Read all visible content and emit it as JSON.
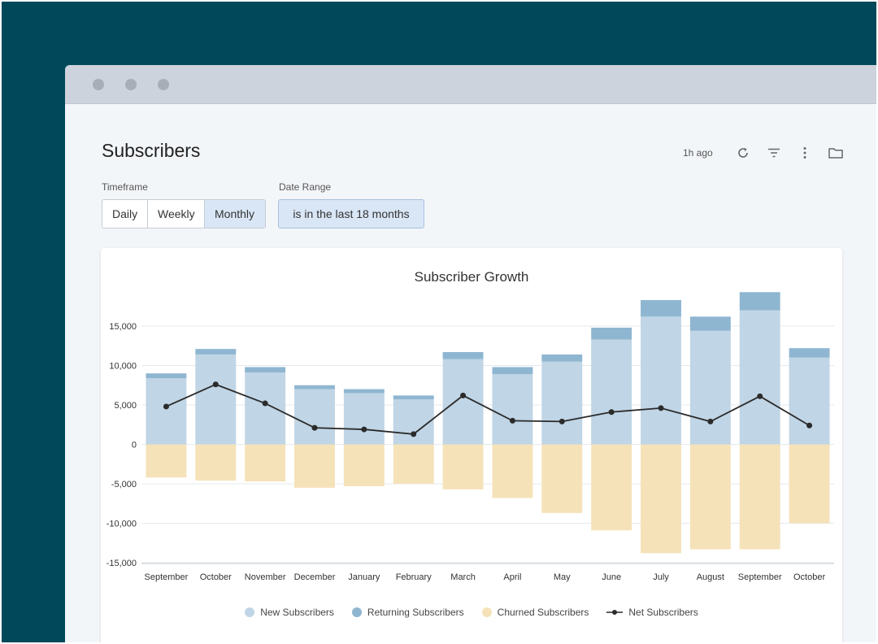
{
  "page": {
    "title": "Subscribers",
    "updated": "1h ago"
  },
  "icons": {
    "refresh": "refresh-icon",
    "filter": "filter-icon",
    "more": "more-vertical-icon",
    "folder": "folder-icon"
  },
  "filters": {
    "timeframe_label": "Timeframe",
    "timeframe_options": [
      "Daily",
      "Weekly",
      "Monthly"
    ],
    "timeframe_selected": "Monthly",
    "date_range_label": "Date Range",
    "date_range_value": "is in the last 18 months"
  },
  "colors": {
    "new": "#c0d5e5",
    "returning": "#8fb6d1",
    "churned": "#f5e2b9",
    "net": "#2b2b2b",
    "backdrop": "#01495a"
  },
  "chart_data": {
    "type": "bar",
    "title": "Subscriber Growth",
    "categories": [
      "September",
      "October",
      "November",
      "December",
      "January",
      "February",
      "March",
      "April",
      "May",
      "June",
      "July",
      "August",
      "September",
      "October"
    ],
    "series": [
      {
        "name": "New Subscribers",
        "kind": "stacked-bar",
        "values": [
          8400,
          11400,
          9100,
          7000,
          6500,
          5700,
          10800,
          8900,
          10500,
          13300,
          16200,
          14400,
          17000,
          11000
        ]
      },
      {
        "name": "Returning Subscribers",
        "kind": "stacked-bar",
        "values": [
          600,
          700,
          700,
          500,
          500,
          500,
          900,
          900,
          900,
          1500,
          2100,
          1800,
          2300,
          1200
        ]
      },
      {
        "name": "Churned Subscribers",
        "kind": "bar",
        "values": [
          -4200,
          -4600,
          -4700,
          -5500,
          -5300,
          -5000,
          -5700,
          -6800,
          -8700,
          -10900,
          -13800,
          -13300,
          -13300,
          -10000
        ]
      },
      {
        "name": "Net Subscribers",
        "kind": "line",
        "values": [
          4800,
          7600,
          5200,
          2100,
          1900,
          1300,
          6200,
          3000,
          2900,
          4100,
          4600,
          2900,
          6100,
          2400
        ]
      }
    ],
    "ylim": [
      -15000,
      15000
    ],
    "yticks": [
      15000,
      10000,
      5000,
      0,
      -5000,
      -10000,
      -15000
    ],
    "ytick_labels": [
      "15,000",
      "10,000",
      "5,000",
      "0",
      "-5,000",
      "-10,000",
      "-15,000"
    ],
    "grid": true,
    "legend": "bottom"
  }
}
